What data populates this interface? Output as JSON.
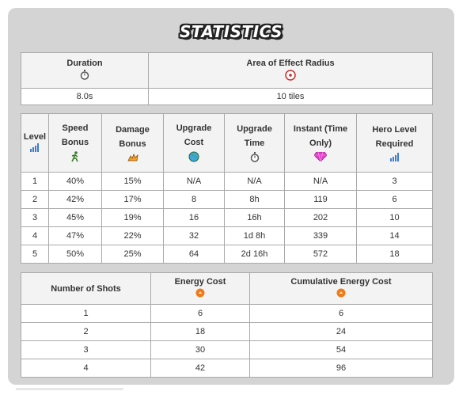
{
  "title": "STATISTICS",
  "summary": {
    "headers": [
      "Duration",
      "Area of Effect Radius"
    ],
    "values": [
      "8.0s",
      "10 tiles"
    ],
    "icons": [
      "stopwatch-icon",
      "target-icon"
    ]
  },
  "upgrades": {
    "headers": [
      "Level",
      "Speed Bonus",
      "Damage Bonus",
      "Upgrade Cost",
      "Upgrade Time",
      "Instant (Time Only)",
      "Hero Level Required"
    ],
    "icons": [
      "level-bars-icon",
      "running-man-icon",
      "damage-burst-icon",
      "globe-coin-icon",
      "stopwatch-icon",
      "gem-icon",
      "level-bars-icon"
    ],
    "rows": [
      [
        "1",
        "40%",
        "15%",
        "N/A",
        "N/A",
        "N/A",
        "3"
      ],
      [
        "2",
        "42%",
        "17%",
        "8",
        "8h",
        "119",
        "6"
      ],
      [
        "3",
        "45%",
        "19%",
        "16",
        "16h",
        "202",
        "10"
      ],
      [
        "4",
        "47%",
        "22%",
        "32",
        "1d 8h",
        "339",
        "14"
      ],
      [
        "5",
        "50%",
        "25%",
        "64",
        "2d 16h",
        "572",
        "18"
      ]
    ]
  },
  "energy": {
    "headers": [
      "Number of Shots",
      "Energy Cost",
      "Cumulative Energy Cost"
    ],
    "icons": [
      "energy-icon",
      "energy-icon"
    ],
    "rows": [
      [
        "1",
        "6",
        "6"
      ],
      [
        "2",
        "18",
        "24"
      ],
      [
        "3",
        "30",
        "54"
      ],
      [
        "4",
        "42",
        "96"
      ]
    ]
  },
  "colors": {
    "panel_bg": "#d4d4d4",
    "header_bg": "#f3f3f3",
    "border": "#a9a9a9",
    "energy_orange": "#f07a1a",
    "gem_pink": "#e040c8",
    "bars_blue": "#3a7bd5"
  }
}
